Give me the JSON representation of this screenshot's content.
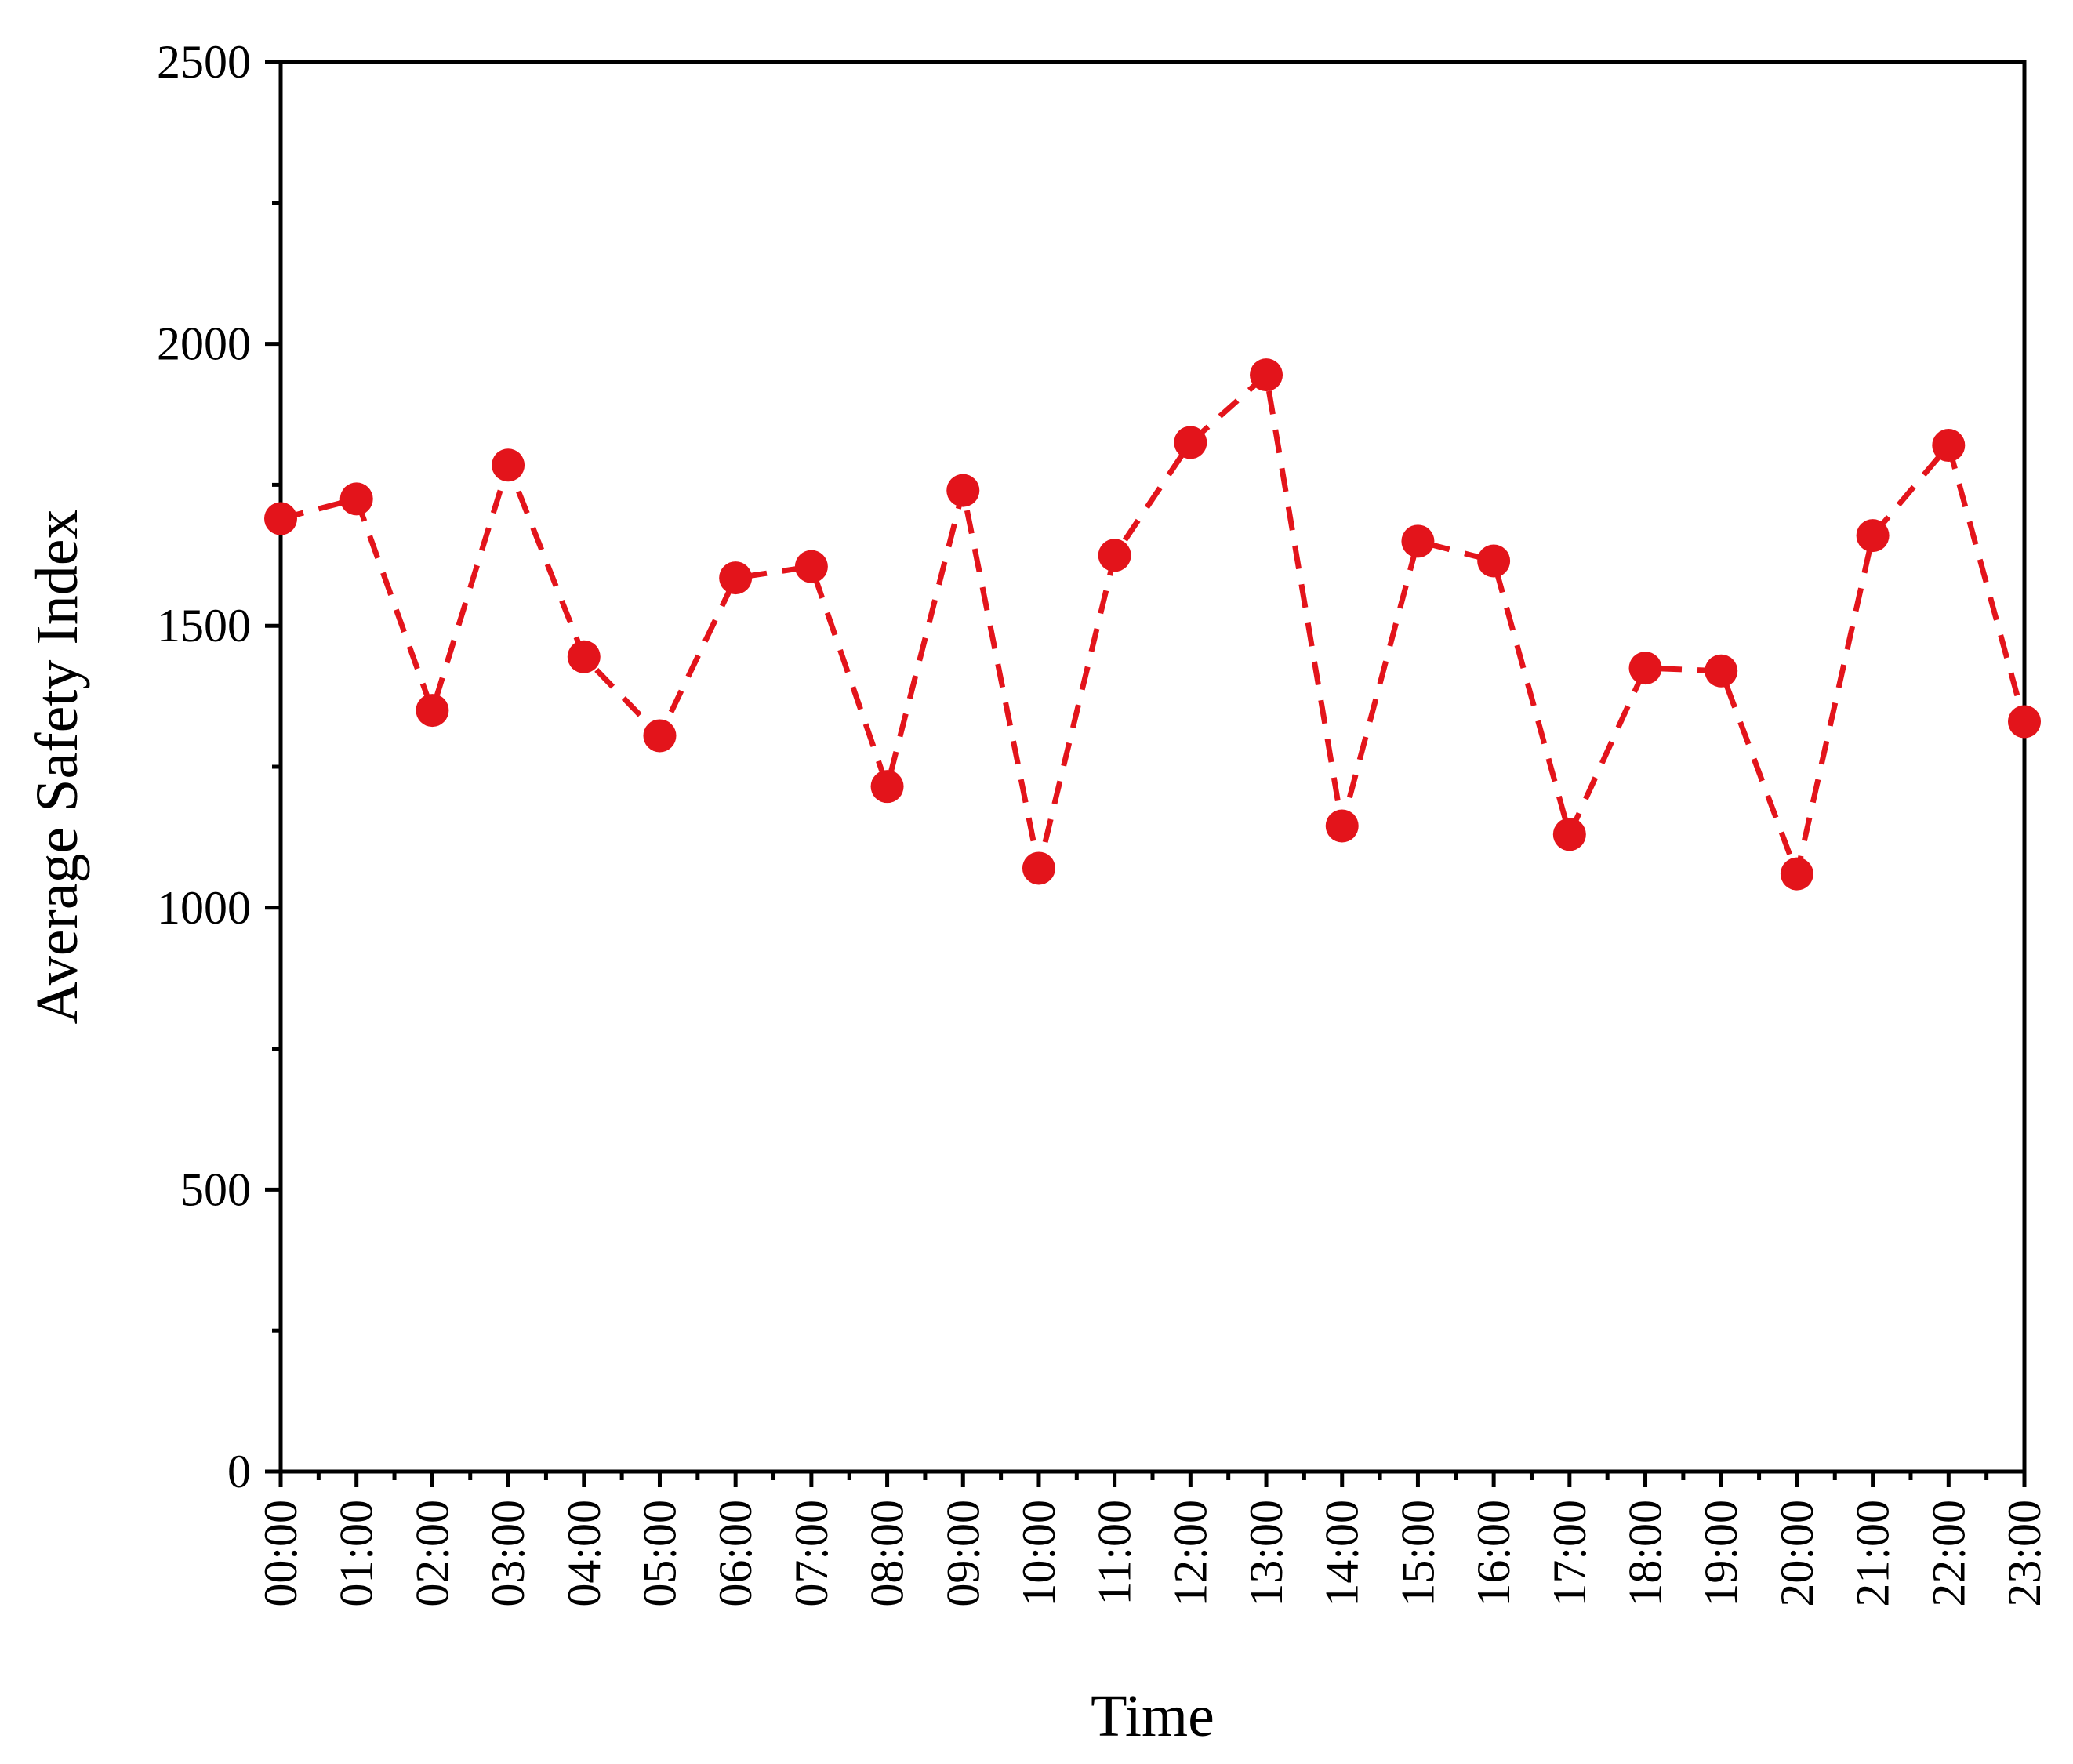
{
  "chart_data": {
    "type": "line",
    "xlabel": "Time",
    "ylabel": "Average Safety Index",
    "ylim": [
      0,
      2500
    ],
    "y_ticks": [
      0,
      500,
      1000,
      1500,
      2000,
      2500
    ],
    "categories": [
      "00:00",
      "01:00",
      "02:00",
      "03:00",
      "04:00",
      "05:00",
      "06:00",
      "07:00",
      "08:00",
      "09:00",
      "10:00",
      "11:00",
      "12:00",
      "13:00",
      "14:00",
      "15:00",
      "16:00",
      "17:00",
      "18:00",
      "19:00",
      "20:00",
      "21:00",
      "22:00",
      "23:00"
    ],
    "series": [
      {
        "name": "",
        "values": [
          1690,
          1725,
          1350,
          1785,
          1445,
          1305,
          1585,
          1605,
          1215,
          1740,
          1070,
          1625,
          1825,
          1945,
          1145,
          1650,
          1615,
          1130,
          1425,
          1420,
          1060,
          1660,
          1820,
          1330
        ],
        "color": "#e3141b",
        "line_style": "dashed",
        "marker": "circle"
      }
    ],
    "grid": false,
    "legend": "none"
  }
}
